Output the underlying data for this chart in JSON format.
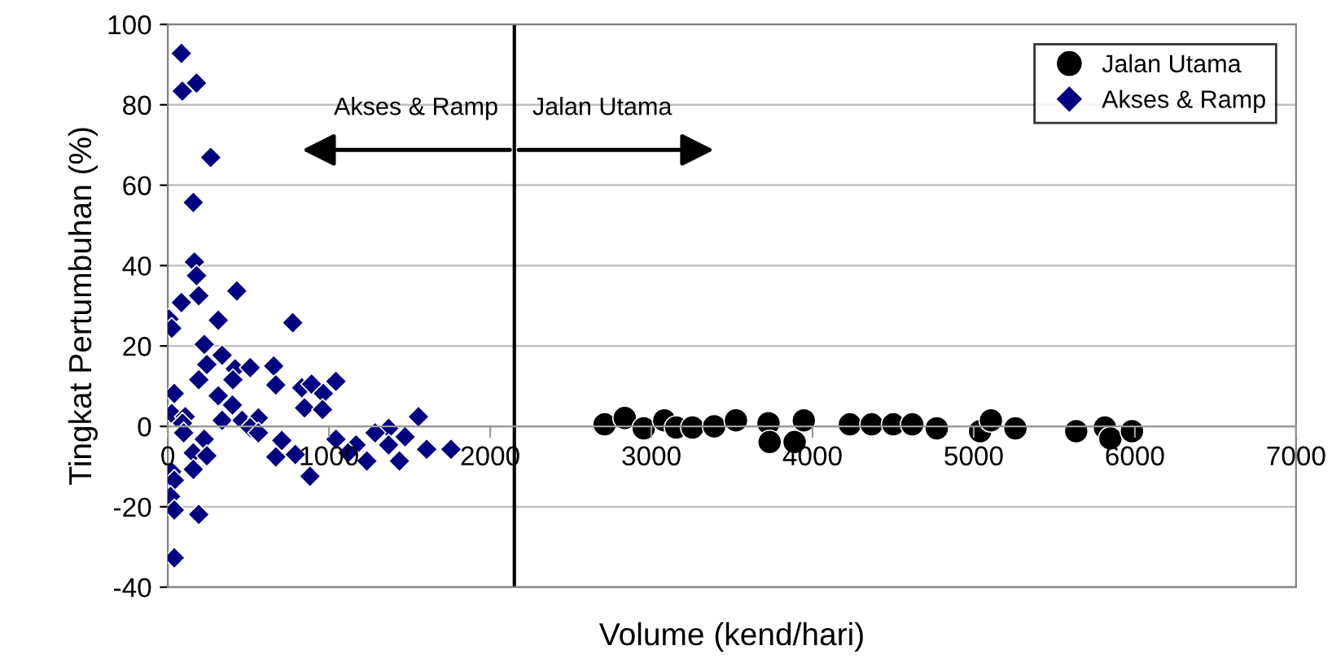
{
  "chart_data": {
    "type": "scatter",
    "xlabel": "Volume (kend/hari)",
    "ylabel": "Tingkat Pertumbuhan (%)",
    "xlim": [
      0,
      7000
    ],
    "ylim": [
      -40,
      100
    ],
    "xticks": [
      0,
      1000,
      2000,
      3000,
      4000,
      5000,
      6000,
      7000
    ],
    "yticks": [
      -40,
      -20,
      0,
      20,
      40,
      60,
      80,
      100
    ],
    "grid": "y",
    "legend": "top right",
    "ref_lines": [
      {
        "axis": "x",
        "value": 2150,
        "color": "#000000"
      }
    ],
    "annotations": [
      "Akses & Ramp",
      "Jalan Utama"
    ],
    "series": [
      {
        "name": "Jalan Utama",
        "color": "#000000",
        "marker": "circle",
        "x": [
          2710,
          2835,
          2953,
          3080,
          3154,
          3255,
          3390,
          3525,
          3727,
          3734,
          3889,
          3946,
          4232,
          4367,
          4501,
          4619,
          4771,
          5040,
          5107,
          5259,
          5636,
          5814,
          5848,
          5982
        ],
        "values": [
          0.5,
          2.1,
          -0.5,
          1.5,
          -0.3,
          -0.3,
          0,
          1.5,
          0.8,
          -3.9,
          -3.9,
          1.5,
          0.5,
          0.5,
          0.5,
          0.5,
          -0.5,
          -1.2,
          1.5,
          -0.5,
          -1.2,
          -0.3,
          -3,
          -1.2
        ]
      },
      {
        "name": "Akses & Ramp",
        "color": "#000080",
        "marker": "diamond",
        "x": [
          84,
          90,
          178,
          266,
          158,
          165,
          178,
          428,
          192,
          84,
          7,
          24,
          313,
          775,
          226,
          337,
          242,
          418,
          511,
          657,
          670,
          192,
          404,
          831,
          892,
          965,
          1043,
          40,
          313,
          401,
          848,
          960,
          24,
          108,
          91,
          337,
          461,
          562,
          511,
          562,
          98,
          1555,
          1370,
          1286,
          1472,
          1043,
          707,
          226,
          1168,
          1370,
          1606,
          1757,
          158,
          242,
          670,
          791,
          1118,
          1235,
          1437,
          882,
          158,
          24,
          40,
          17,
          40,
          192,
          40
        ],
        "values": [
          92.8,
          83.4,
          85.4,
          66.9,
          55.7,
          40.9,
          37.5,
          33.7,
          32.5,
          30.8,
          26.7,
          24.4,
          26.4,
          25.8,
          20.4,
          17.7,
          15.4,
          14.3,
          14.6,
          15,
          10.3,
          11.6,
          11.6,
          9.6,
          10.5,
          8.2,
          11.2,
          8.2,
          7.6,
          5.3,
          4.6,
          4.2,
          3.2,
          2.4,
          0.8,
          1.5,
          1.5,
          2.1,
          -0.3,
          -1.6,
          -1.6,
          2.4,
          -0.5,
          -1.6,
          -2.6,
          -3.2,
          -3.5,
          -3.2,
          -4.6,
          -4.6,
          -5.7,
          -5.7,
          -6.6,
          -7.3,
          -7.6,
          -7,
          -6.6,
          -8.6,
          -8.6,
          -12.4,
          -10.7,
          -11.3,
          -13.4,
          -17.4,
          -20.8,
          -21.9,
          -32.7
        ]
      }
    ]
  }
}
